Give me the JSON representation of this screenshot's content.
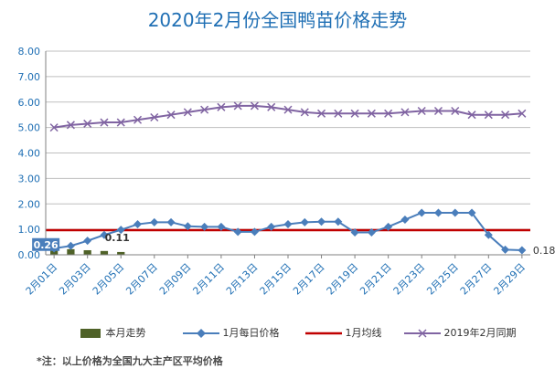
{
  "chart_data": {
    "type": "line",
    "title": "2020年2月份全国鸭苗价格走势",
    "y_ticks": [
      "8.00",
      "7.00",
      "6.00",
      "5.00",
      "4.00",
      "3.00",
      "2.00",
      "1.00",
      "0.00"
    ],
    "ylim": [
      0,
      8
    ],
    "x_tick_labels": [
      "2月01日",
      "2月03日",
      "2月05日",
      "2月07日",
      "2月09日",
      "2月11日",
      "2月13日",
      "2月15日",
      "2月17日",
      "2月19日",
      "2月21日",
      "2月23日",
      "2月25日",
      "2月27日",
      "2月29日"
    ],
    "x_days": [
      1,
      2,
      3,
      4,
      5,
      6,
      7,
      8,
      9,
      10,
      11,
      12,
      13,
      14,
      15,
      16,
      17,
      18,
      19,
      20,
      21,
      22,
      23,
      24,
      25,
      26,
      27,
      28,
      29
    ],
    "series": [
      {
        "name": "本月走势",
        "type": "bar",
        "color": "#4f6228",
        "values": [
          0.26,
          0.22,
          0.18,
          0.15,
          0.11
        ]
      },
      {
        "name": "1月每日价格",
        "type": "line",
        "marker": "diamond",
        "color": "#4a7ebb",
        "values": [
          0.25,
          0.35,
          0.55,
          0.78,
          0.98,
          1.2,
          1.28,
          1.28,
          1.12,
          1.1,
          1.1,
          0.9,
          0.9,
          1.1,
          1.2,
          1.28,
          1.3,
          1.3,
          0.88,
          0.88,
          1.1,
          1.38,
          1.65,
          1.65,
          1.65,
          1.65,
          0.78,
          0.2,
          0.18
        ]
      },
      {
        "name": "1月均线",
        "type": "hline",
        "color": "#c00000",
        "value": 0.97
      },
      {
        "name": "2019年2月同期",
        "type": "line",
        "marker": "x",
        "color": "#8064a2",
        "values": [
          5.0,
          5.1,
          5.15,
          5.2,
          5.2,
          5.3,
          5.4,
          5.5,
          5.6,
          5.7,
          5.8,
          5.85,
          5.85,
          5.8,
          5.7,
          5.6,
          5.55,
          5.55,
          5.55,
          5.55,
          5.55,
          5.6,
          5.65,
          5.65,
          5.65,
          5.5,
          5.5,
          5.5,
          5.55
        ]
      }
    ],
    "annotations": [
      "0.26",
      "0.11",
      "0.18"
    ],
    "xlabel": "",
    "ylabel": "",
    "grid": true,
    "legend": "bottom"
  },
  "legend_labels": [
    "本月走势",
    "1月每日价格",
    "1月均线",
    "2019年2月同期"
  ],
  "footnote": "*注：以上价格为全国九大主产区平均价格"
}
